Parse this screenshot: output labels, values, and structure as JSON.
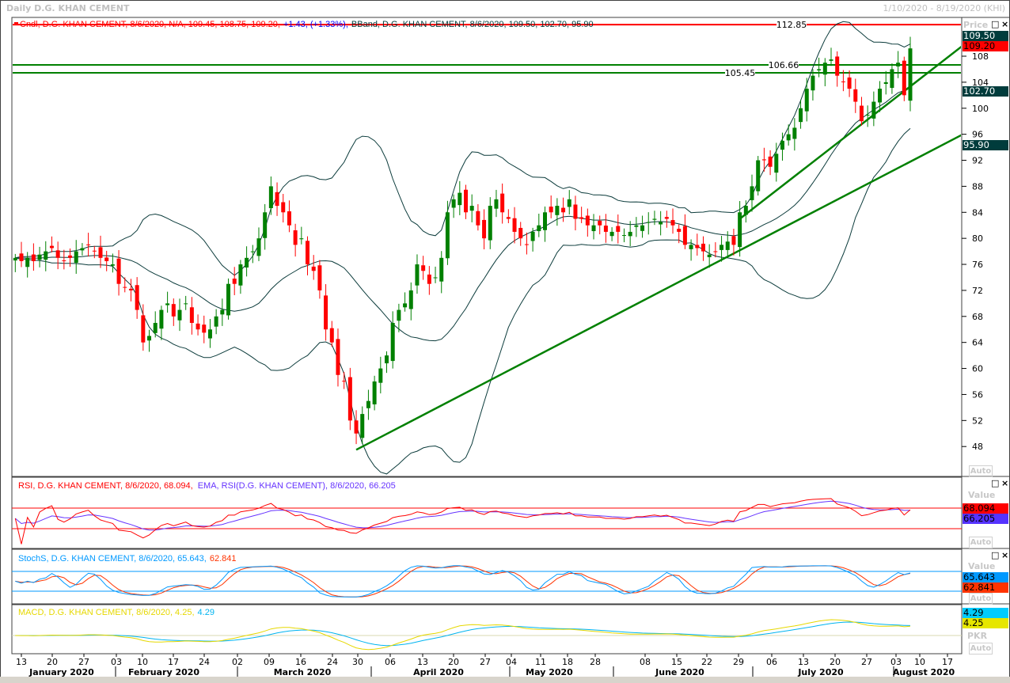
{
  "window": {
    "title": "Daily D.G. KHAN CEMENT",
    "date_range": "1/10/2020 - 8/19/2020 (KHI)"
  },
  "colors": {
    "up": "#008000",
    "down": "#ff0000",
    "band": "#0b3b3b",
    "trend": "#008000",
    "resistance": "#ff0000",
    "rsi": "#ff0000",
    "rsi_ema": "#6633ff",
    "stoch_k": "#0099ff",
    "stoch_d": "#ff3300",
    "macd": "#e6d800",
    "macd_signal": "#00b4f0"
  },
  "chart_data": [
    {
      "type": "candlestick",
      "title": "Cndl, D.G. KHAN CEMENT, 8/6/2020, N/A, 109.45, 108.75, 109.20,",
      "change_text": "+1.43, (+1.33%),",
      "bband_title": "BBand, D.G. KHAN CEMENT, 8/6/2020, 109.50, 102.70, 95.90",
      "ylabel": "Price",
      "ylim": [
        44,
        114
      ],
      "yticks": [
        "48",
        "52",
        "56",
        "60",
        "64",
        "68",
        "72",
        "76",
        "80",
        "84",
        "88",
        "92",
        "96",
        "100",
        "104",
        "108"
      ],
      "closes": [
        77,
        76.5,
        77,
        76.5,
        77.5,
        78,
        78.5,
        77,
        76.5,
        77,
        78,
        78.5,
        79,
        78,
        77,
        76.5,
        76,
        73,
        72.5,
        72,
        69,
        64,
        65,
        67,
        69,
        70,
        68,
        69,
        70,
        67,
        66,
        65.5,
        66,
        68,
        69,
        73,
        73,
        76,
        77,
        78,
        80,
        84,
        88,
        85,
        84,
        82,
        79,
        80,
        76,
        75,
        72,
        66,
        64,
        59,
        58,
        52,
        50,
        53,
        55,
        58,
        60,
        62,
        67,
        69,
        70,
        72,
        76,
        75,
        73,
        74,
        77,
        84,
        86,
        87,
        84,
        85,
        82,
        80,
        85,
        86,
        84,
        83,
        81,
        80,
        79,
        81,
        82,
        84,
        84,
        85,
        84,
        86,
        83,
        83,
        82,
        82,
        82,
        81,
        81,
        81,
        80.5,
        81,
        82,
        82,
        82.5,
        83,
        82.5,
        83,
        82,
        81,
        79,
        79,
        78.5,
        78,
        77.5,
        78,
        79,
        79.5,
        79,
        84,
        85,
        88,
        92,
        92,
        91,
        93,
        95,
        96,
        97,
        100,
        103,
        105,
        106,
        107,
        107.5,
        105,
        104,
        103,
        101,
        98,
        99,
        101,
        103,
        104,
        106,
        107,
        102,
        109.2
      ],
      "last_ohlc": {
        "open": "N/A",
        "high": 109.45,
        "low": 108.75,
        "close": 109.2
      },
      "horizontal_lines": [
        {
          "label": "112.85",
          "value": 112.85,
          "color": "resistance"
        },
        {
          "label": "106.66",
          "value": 106.66,
          "color": "trend"
        },
        {
          "label": "105.45",
          "value": 105.45,
          "color": "trend"
        }
      ],
      "trend_lines": [
        {
          "from": {
            "date": "3/30/2020",
            "price": 47.5
          },
          "to": {
            "date": "8/19/2020",
            "price": 95.9
          }
        },
        {
          "from": {
            "date": "6/30/2020",
            "price": 83.0
          },
          "to": {
            "date": "8/19/2020",
            "price": 109.5
          }
        }
      ],
      "value_tags": [
        {
          "label": "109.50",
          "value": 109.5,
          "bg": "#003c3c",
          "fg": "#ffffff"
        },
        {
          "label": "109.20",
          "value": 109.2,
          "bg": "#ff0000",
          "fg": "#000000"
        },
        {
          "label": "102.70",
          "value": 102.7,
          "bg": "#003c3c",
          "fg": "#ffffff"
        },
        {
          "label": "95.90",
          "value": 95.9,
          "bg": "#003c3c",
          "fg": "#ffffff"
        }
      ]
    },
    {
      "type": "line",
      "title_rsi": "RSI, D.G. KHAN CEMENT, 8/6/2020, 68.094,",
      "title_ema": "EMA, RSI(D.G. KHAN CEMENT), 8/6/2020, 66.205",
      "levels": [
        70,
        30
      ],
      "ylim": [
        0,
        100
      ],
      "tags": [
        {
          "label": "68.094",
          "bg": "#ff0000",
          "fg": "#000000"
        },
        {
          "label": "66.205",
          "bg": "#5533ff",
          "fg": "#000000"
        }
      ]
    },
    {
      "type": "line",
      "title_k": "StochS, D.G. KHAN CEMENT, 8/6/2020, 65.643,",
      "title_d": "62.841",
      "levels": [
        80,
        20
      ],
      "ylim": [
        0,
        100
      ],
      "tags": [
        {
          "label": "65.643",
          "bg": "#0099ff",
          "fg": "#000000"
        },
        {
          "label": "62.841",
          "bg": "#ff3300",
          "fg": "#000000"
        }
      ]
    },
    {
      "type": "line",
      "title_macd": "MACD, D.G. KHAN CEMENT, 8/6/2020, 4.25,",
      "title_signal": "4.29",
      "tags": [
        {
          "label": "4.29",
          "bg": "#00ccff",
          "fg": "#000000"
        },
        {
          "label": "4.25",
          "bg": "#e6e600",
          "fg": "#000000"
        }
      ]
    }
  ],
  "axis_labels": {
    "value": "Value",
    "price": "Price",
    "currency": "PKR",
    "auto": "Auto"
  },
  "x_ticks": [
    "13",
    "20",
    "27",
    "03",
    "10",
    "17",
    "24",
    "02",
    "09",
    "16",
    "24",
    "30",
    "06",
    "13",
    "20",
    "27",
    "04",
    "11",
    "18",
    "28",
    "08",
    "15",
    "22",
    "29",
    "06",
    "13",
    "20",
    "27",
    "03",
    "10",
    "17"
  ],
  "months": [
    "January 2020",
    "February 2020",
    "March 2020",
    "April 2020",
    "May 2020",
    "June 2020",
    "July 2020",
    "August 2020"
  ]
}
